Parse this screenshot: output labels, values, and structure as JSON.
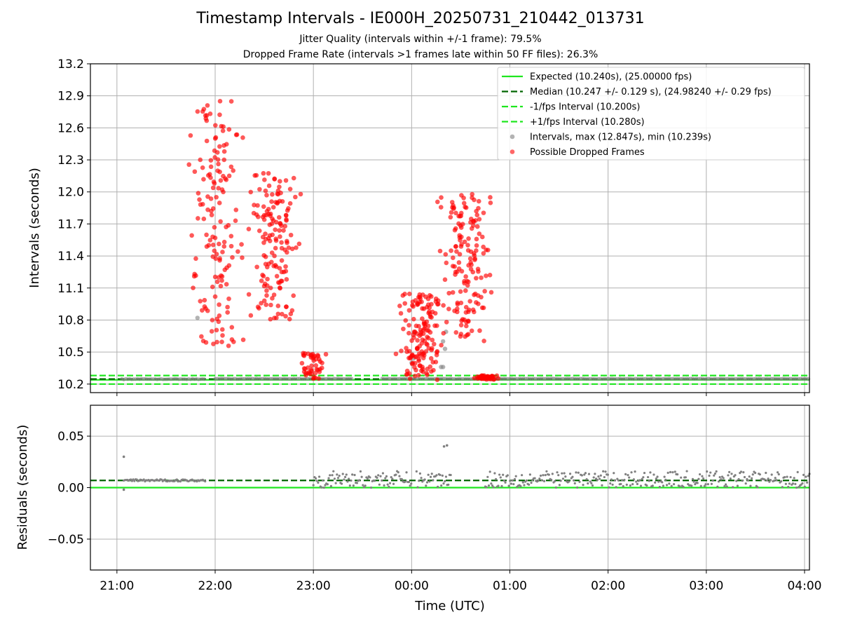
{
  "chart_data": [
    {
      "type": "scatter",
      "title": "Timestamp Intervals - IE000H_20250731_210442_013731",
      "subtitle_lines": [
        "Jitter Quality (intervals within +/-1 frame): 79.5%",
        "Dropped Frame Rate (intervals >1 frames late within 50 FF files): 26.3%"
      ],
      "xlabel": "",
      "ylabel": "Intervals (seconds)",
      "x_tick_labels": [
        "21:00",
        "22:00",
        "23:00",
        "00:00",
        "01:00",
        "02:00",
        "03:00",
        "04:00"
      ],
      "xlim_hours": [
        -0.27,
        7.05
      ],
      "ylim": [
        10.12,
        13.2
      ],
      "yticks": [
        10.2,
        10.5,
        10.8,
        11.1,
        11.4,
        11.7,
        12.0,
        12.3,
        12.6,
        12.9,
        13.2
      ],
      "grid": true,
      "legend_position": "upper right",
      "reference_lines": [
        {
          "name": "Expected (10.240s), (25.00000 fps)",
          "y": 10.24,
          "color": "#1ee61e",
          "style": "solid"
        },
        {
          "name": "Median (10.247 +/- 0.129 s), (24.98240 +/- 0.29 fps)",
          "y": 10.247,
          "color": "#006400",
          "style": "dashed"
        },
        {
          "name": "-1/fps Interval (10.200s)",
          "y": 10.2,
          "color": "#1ee61e",
          "style": "dashed"
        },
        {
          "name": "+1/fps Interval (10.280s)",
          "y": 10.28,
          "color": "#1ee61e",
          "style": "dashed"
        }
      ],
      "series": [
        {
          "name": "Intervals, max (12.847s), min (10.239s)",
          "color": "#808080",
          "segments": [
            {
              "x_range_hours": [
                0.05,
                0.9
              ],
              "y": 10.247
            },
            {
              "x_range_hours": [
                1.0,
                2.0
              ],
              "y": 10.25
            },
            {
              "x_range_hours": [
                2.05,
                2.4
              ],
              "y": 10.25
            },
            {
              "x_range_hours": [
                2.7,
                7.05
              ],
              "y": 10.25
            }
          ],
          "points": [
            [
              0.82,
              10.82
            ],
            [
              3.0,
              10.4
            ],
            [
              3.02,
              10.44
            ],
            [
              3.03,
              10.68
            ],
            [
              3.3,
              10.36
            ],
            [
              3.32,
              10.36
            ],
            [
              3.34,
              10.53
            ],
            [
              3.32,
              10.6
            ],
            [
              3.35,
              10.69
            ]
          ]
        },
        {
          "name": "Possible Dropped Frames",
          "color": "#ff0000",
          "clusters": [
            {
              "center_hours": 1.0,
              "y_range": [
                10.55,
                12.85
              ]
            },
            {
              "center_hours": 1.6,
              "y_range": [
                10.8,
                12.2
              ]
            },
            {
              "center_hours": 2.0,
              "y_range": [
                10.24,
                10.5
              ]
            },
            {
              "center_hours": 3.1,
              "y_range": [
                10.24,
                11.05
              ]
            },
            {
              "center_hours": 3.55,
              "y_range": [
                10.6,
                11.98
              ]
            },
            {
              "center_hours": 3.75,
              "y_range": [
                10.24,
                10.28
              ]
            }
          ]
        }
      ]
    },
    {
      "type": "scatter",
      "title": "",
      "xlabel": "Time (UTC)",
      "ylabel": "Residuals (seconds)",
      "x_tick_labels": [
        "21:00",
        "22:00",
        "23:00",
        "00:00",
        "01:00",
        "02:00",
        "03:00",
        "04:00"
      ],
      "xlim_hours": [
        -0.27,
        7.05
      ],
      "ylim": [
        -0.08,
        0.08
      ],
      "yticks": [
        -0.05,
        0.0,
        0.05
      ],
      "ytick_labels": [
        "−0.05",
        "0.00",
        "0.05"
      ],
      "grid": true,
      "reference_lines": [
        {
          "name": "expected",
          "y": 0.0,
          "color": "#1ee61e",
          "style": "solid"
        },
        {
          "name": "median",
          "y": 0.007,
          "color": "#006400",
          "style": "dashed"
        }
      ],
      "series": [
        {
          "name": "residuals",
          "color": "#808080",
          "segments": [
            {
              "x_range_hours": [
                0.07,
                0.9
              ],
              "y_range": [
                0.006,
                0.008
              ]
            },
            {
              "x_range_hours": [
                2.0,
                3.0
              ],
              "y_range": [
                0.0,
                0.016
              ]
            },
            {
              "x_range_hours": [
                3.05,
                3.4
              ],
              "y_range": [
                0.0,
                0.016
              ]
            },
            {
              "x_range_hours": [
                3.75,
                7.05
              ],
              "y_range": [
                0.0,
                0.016
              ]
            }
          ],
          "points": [
            [
              0.07,
              0.03
            ],
            [
              0.07,
              -0.002
            ],
            [
              3.33,
              0.04
            ],
            [
              3.36,
              0.041
            ]
          ]
        }
      ]
    }
  ]
}
